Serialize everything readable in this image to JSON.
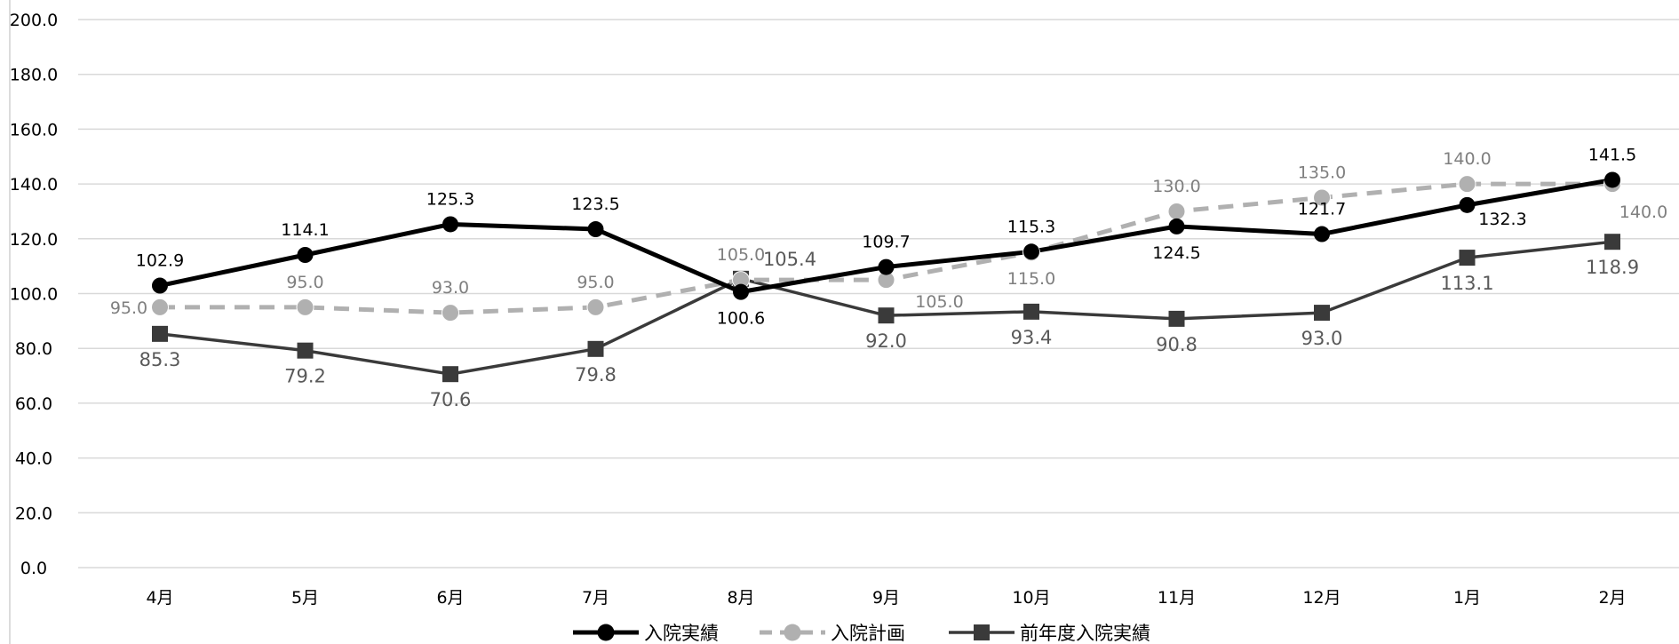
{
  "chart_data": {
    "type": "line",
    "title": "",
    "xlabel": "",
    "ylabel": "",
    "categories": [
      "4月",
      "5月",
      "6月",
      "7月",
      "8月",
      "9月",
      "10月",
      "11月",
      "12月",
      "1月",
      "2月"
    ],
    "ylim": [
      0,
      200
    ],
    "yticks": [
      "0.0",
      "20.0",
      "40.0",
      "60.0",
      "80.0",
      "100.0",
      "120.0",
      "140.0",
      "160.0",
      "180.0",
      "200.0"
    ],
    "grid": true,
    "legend_position": "bottom",
    "series": [
      {
        "name": "入院実績",
        "color": "#000000",
        "style": "solid",
        "marker": "circle",
        "values": [
          102.9,
          114.1,
          125.3,
          123.5,
          100.6,
          109.7,
          115.3,
          124.5,
          121.7,
          132.3,
          141.5
        ],
        "labels": [
          "102.9",
          "114.1",
          "125.3",
          "123.5",
          "100.6",
          "109.7",
          "115.3",
          "124.5",
          "121.7",
          "132.3",
          "141.5"
        ]
      },
      {
        "name": "入院計画",
        "color": "#b0b0b0",
        "style": "dashed",
        "marker": "circle",
        "values": [
          95.0,
          95.0,
          93.0,
          95.0,
          105.0,
          105.0,
          115.0,
          130.0,
          135.0,
          140.0,
          140.0
        ],
        "labels": [
          "95.0",
          "95.0",
          "93.0",
          "95.0",
          "105.0",
          "105.0",
          "115.0",
          "130.0",
          "135.0",
          "140.0",
          "140.0"
        ]
      },
      {
        "name": "前年度入院実績",
        "color": "#3a3a3a",
        "style": "solid",
        "marker": "square",
        "values": [
          85.3,
          79.2,
          70.6,
          79.8,
          105.4,
          92.0,
          93.4,
          90.8,
          93.0,
          113.1,
          118.9
        ],
        "labels": [
          "85.3",
          "79.2",
          "70.6",
          "79.8",
          "105.4",
          "92.0",
          "93.4",
          "90.8",
          "93.0",
          "113.1",
          "118.9"
        ]
      }
    ]
  }
}
